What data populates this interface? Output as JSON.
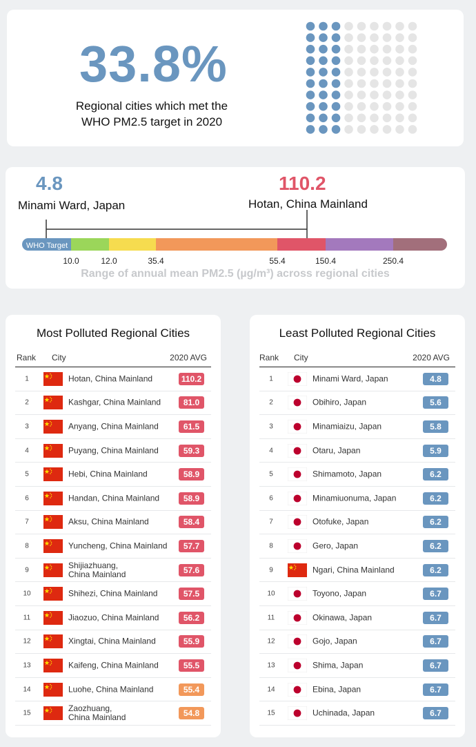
{
  "summary": {
    "percent": "33.8%",
    "description_line1": "Regional cities which met the",
    "description_line2": "WHO PM2.5 target in 2020",
    "dots_total": 90,
    "dots_met": 30,
    "dot_met_color": "#6a96bf",
    "dot_other_color": "#e5e5e5"
  },
  "range": {
    "min_value": "4.8",
    "min_city": "Minami Ward, Japan",
    "max_value": "110.2",
    "max_city": "Hotan, China Mainland",
    "who_label": "WHO Target",
    "tick_labels": [
      "10.0",
      "12.0",
      "35.4",
      "55.4",
      "150.4",
      "250.4"
    ],
    "caption": "Range of annual mean PM2.5 (µg/m³) across regional cities",
    "segment_colors": [
      "#6a96bf",
      "#9bd65a",
      "#f6dc4f",
      "#f2985a",
      "#e05568",
      "#a379bd",
      "#a26f7b"
    ]
  },
  "chart_data": [
    {
      "type": "table",
      "title": "Most Polluted Regional Cities",
      "columns": [
        "Rank",
        "City",
        "2020 AVG"
      ],
      "rows": [
        {
          "rank": "1",
          "city": "Hotan, China Mainland",
          "value": "110.2",
          "flag": "china"
        },
        {
          "rank": "2",
          "city": "Kashgar, China Mainland",
          "value": "81.0",
          "flag": "china"
        },
        {
          "rank": "3",
          "city": "Anyang, China Mainland",
          "value": "61.5",
          "flag": "china"
        },
        {
          "rank": "4",
          "city": "Puyang, China Mainland",
          "value": "59.3",
          "flag": "china"
        },
        {
          "rank": "5",
          "city": "Hebi, China Mainland",
          "value": "58.9",
          "flag": "china"
        },
        {
          "rank": "6",
          "city": "Handan, China Mainland",
          "value": "58.9",
          "flag": "china"
        },
        {
          "rank": "7",
          "city": "Aksu, China Mainland",
          "value": "58.4",
          "flag": "china"
        },
        {
          "rank": "8",
          "city": "Yuncheng, China Mainland",
          "value": "57.7",
          "flag": "china"
        },
        {
          "rank": "9",
          "city": "Shijiazhuang,\nChina Mainland",
          "value": "57.6",
          "flag": "china"
        },
        {
          "rank": "10",
          "city": "Shihezi, China Mainland",
          "value": "57.5",
          "flag": "china"
        },
        {
          "rank": "11",
          "city": "Jiaozuo, China Mainland",
          "value": "56.2",
          "flag": "china"
        },
        {
          "rank": "12",
          "city": "Xingtai, China Mainland",
          "value": "55.9",
          "flag": "china"
        },
        {
          "rank": "13",
          "city": "Kaifeng, China Mainland",
          "value": "55.5",
          "flag": "china"
        },
        {
          "rank": "14",
          "city": "Luohe, China Mainland",
          "value": "55.4",
          "flag": "china"
        },
        {
          "rank": "15",
          "city": "Zaozhuang,\nChina Mainland",
          "value": "54.8",
          "flag": "china"
        }
      ]
    },
    {
      "type": "table",
      "title": "Least Polluted Regional Cities",
      "columns": [
        "Rank",
        "City",
        "2020 AVG"
      ],
      "rows": [
        {
          "rank": "1",
          "city": "Minami Ward, Japan",
          "value": "4.8",
          "flag": "japan"
        },
        {
          "rank": "2",
          "city": "Obihiro, Japan",
          "value": "5.6",
          "flag": "japan"
        },
        {
          "rank": "3",
          "city": "Minamiaizu, Japan",
          "value": "5.8",
          "flag": "japan"
        },
        {
          "rank": "4",
          "city": "Otaru, Japan",
          "value": "5.9",
          "flag": "japan"
        },
        {
          "rank": "5",
          "city": "Shimamoto, Japan",
          "value": "6.2",
          "flag": "japan"
        },
        {
          "rank": "6",
          "city": "Minamiuonuma, Japan",
          "value": "6.2",
          "flag": "japan"
        },
        {
          "rank": "7",
          "city": "Otofuke, Japan",
          "value": "6.2",
          "flag": "japan"
        },
        {
          "rank": "8",
          "city": "Gero, Japan",
          "value": "6.2",
          "flag": "japan"
        },
        {
          "rank": "9",
          "city": "Ngari, China Mainland",
          "value": "6.2",
          "flag": "china"
        },
        {
          "rank": "10",
          "city": "Toyono, Japan",
          "value": "6.7",
          "flag": "japan"
        },
        {
          "rank": "11",
          "city": "Okinawa, Japan",
          "value": "6.7",
          "flag": "japan"
        },
        {
          "rank": "12",
          "city": "Gojo, Japan",
          "value": "6.7",
          "flag": "japan"
        },
        {
          "rank": "13",
          "city": "Shima, Japan",
          "value": "6.7",
          "flag": "japan"
        },
        {
          "rank": "14",
          "city": "Ebina, Japan",
          "value": "6.7",
          "flag": "japan"
        },
        {
          "rank": "15",
          "city": "Uchinada, Japan",
          "value": "6.7",
          "flag": "japan"
        }
      ]
    }
  ]
}
